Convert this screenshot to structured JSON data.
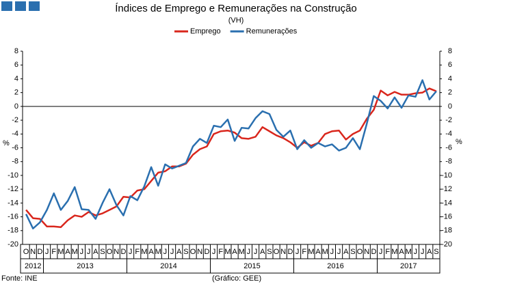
{
  "chart_data": {
    "type": "line",
    "title": "Índices de Emprego e Remunerações na Construção",
    "subtitle": "(VH)",
    "y_label": "%",
    "y2_label": "%",
    "source": "Fonte: INE",
    "credit": "(Gráfico: GEE)",
    "categories": [
      "O",
      "N",
      "D",
      "J",
      "F",
      "M",
      "A",
      "M",
      "J",
      "J",
      "A",
      "S",
      "O",
      "N",
      "D",
      "J",
      "F",
      "M",
      "A",
      "M",
      "J",
      "J",
      "A",
      "S",
      "O",
      "N",
      "D",
      "J",
      "F",
      "M",
      "A",
      "M",
      "J",
      "J",
      "A",
      "S",
      "O",
      "N",
      "D",
      "J",
      "F",
      "M",
      "A",
      "M",
      "J",
      "J",
      "A",
      "S",
      "O",
      "N",
      "D",
      "J",
      "F",
      "M",
      "A",
      "M",
      "J",
      "J",
      "A",
      "S"
    ],
    "year_labels": [
      "2012",
      "2013",
      "2014",
      "2015",
      "2016",
      "2017"
    ],
    "year_spans": [
      3,
      12,
      12,
      12,
      12,
      9
    ],
    "ylim": [
      -20,
      8
    ],
    "yticks": [
      -20,
      -18,
      -16,
      -14,
      -12,
      -10,
      -8,
      -6,
      -4,
      -2,
      0,
      2,
      4,
      6,
      8
    ],
    "y2lim": [
      -20,
      8
    ],
    "y2ticks": [
      -20,
      -18,
      -16,
      -14,
      -12,
      -10,
      -8,
      -6,
      -4,
      -2,
      0,
      2,
      4,
      6,
      8
    ],
    "legend": "top",
    "series": [
      {
        "name": "Emprego",
        "color": "#d9261c",
        "values": [
          -15,
          -16.2,
          -16.3,
          -17.4,
          -17.4,
          -17.5,
          -16.5,
          -15.8,
          -16,
          -15.3,
          -15.8,
          -15.5,
          -15,
          -14.5,
          -13.1,
          -13.2,
          -12.2,
          -12,
          -10.8,
          -9.6,
          -9.4,
          -8.7,
          -8.7,
          -8.3,
          -7,
          -6.2,
          -5.8,
          -4,
          -3.6,
          -3.5,
          -3.8,
          -4.6,
          -4.7,
          -4.4,
          -3,
          -3.6,
          -4.2,
          -4.6,
          -5.2,
          -6,
          -5.2,
          -5.7,
          -5.3,
          -4,
          -3.6,
          -3.5,
          -4.8,
          -4,
          -3.5,
          -1.8,
          -0.5,
          2.3,
          1.6,
          2.1,
          1.7,
          1.7,
          1.9,
          2,
          2.6,
          2.2
        ]
      },
      {
        "name": "Remunerações",
        "color": "#2a6faf",
        "values": [
          -15.6,
          -17.7,
          -16.8,
          -15,
          -12.6,
          -15,
          -13.7,
          -11.7,
          -14.9,
          -15,
          -16.3,
          -14,
          -12,
          -14.3,
          -15.8,
          -13,
          -13.6,
          -11.6,
          -8.8,
          -11.5,
          -8.4,
          -9,
          -8.6,
          -8.2,
          -5.8,
          -4.7,
          -5.3,
          -2.8,
          -3,
          -1.9,
          -5,
          -3.1,
          -3.2,
          -1.7,
          -0.7,
          -1.1,
          -3.4,
          -4.4,
          -3.5,
          -6.2,
          -4.9,
          -6,
          -5.3,
          -5.8,
          -5.5,
          -6.4,
          -6,
          -4.6,
          -6.2,
          -2.5,
          1.5,
          0.8,
          -0.3,
          1.3,
          -0.2,
          1.6,
          1.4,
          3.8,
          1,
          2.2
        ]
      }
    ]
  }
}
